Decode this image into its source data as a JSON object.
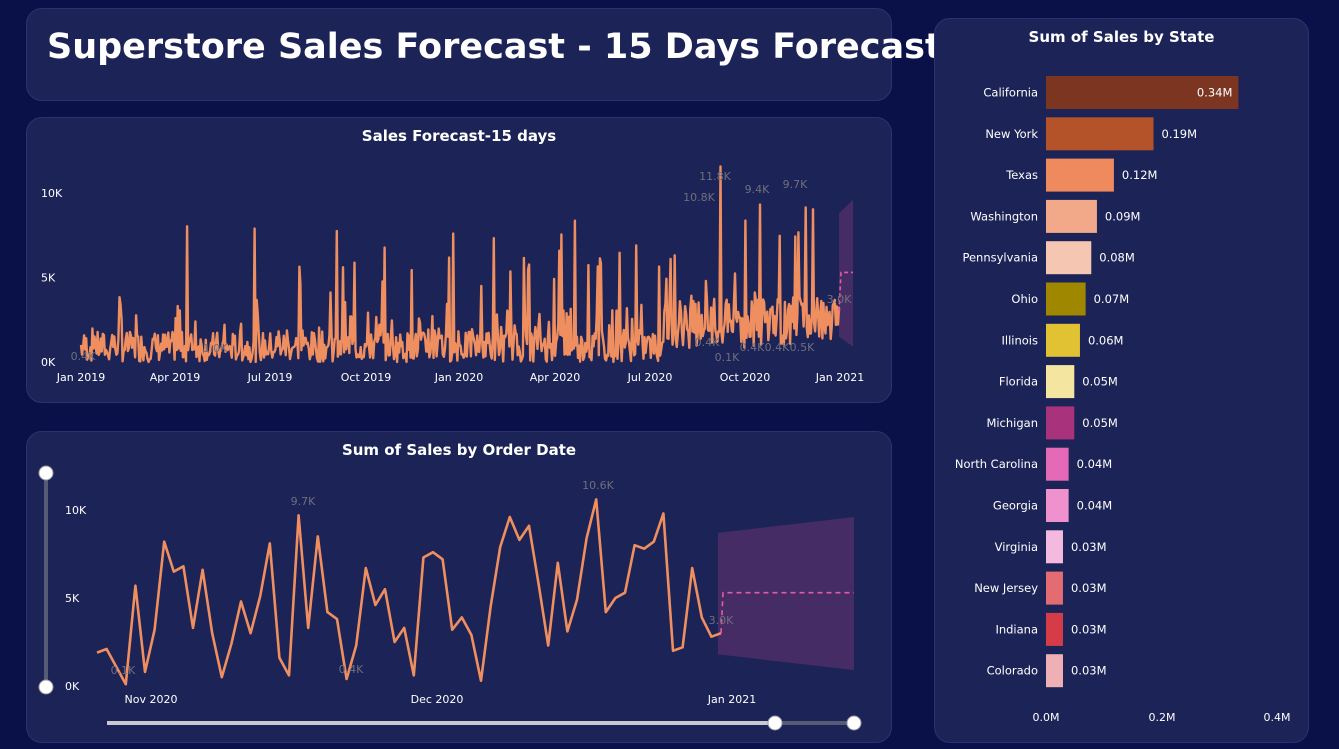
{
  "title": "Superstore Sales Forecast - 15 Days Forecast",
  "colors": {
    "background": "#0a1149",
    "card": "#1c2356",
    "line": "#ef8f5f",
    "forecast_band": "#4a2d66",
    "forecast_line": "#e75aa8"
  },
  "charts": {
    "forecast": {
      "title": "Sales Forecast-15 days",
      "y_ticks": [
        "0K",
        "5K",
        "10K"
      ],
      "x_ticks": [
        "Jan 2019",
        "Apr 2019",
        "Jul 2019",
        "Oct 2019",
        "Jan 2020",
        "Apr 2020",
        "Jul 2020",
        "Oct 2020",
        "Jan 2021"
      ],
      "annotations": [
        "0.4K",
        "10.8K",
        "11.8K",
        "9.4K",
        "9.7K",
        "0.4K",
        "0.1K",
        "3.0K"
      ]
    },
    "order_date": {
      "title": "Sum of Sales by Order Date",
      "y_ticks": [
        "0K",
        "5K",
        "10K"
      ],
      "x_ticks": [
        "Nov 2020",
        "Dec 2020",
        "Jan 2021"
      ],
      "annotations": [
        "0.1K",
        "9.7K",
        "0.4K",
        "10.6K",
        "3.0K"
      ]
    },
    "state": {
      "title": "Sum of Sales by State",
      "x_ticks": [
        "0.0M",
        "0.2M",
        "0.4M"
      ]
    }
  },
  "chart_data": [
    {
      "type": "line",
      "title": "Sales Forecast-15 days",
      "x_range": [
        "2019-01-01",
        "2021-01-15"
      ],
      "ylim": [
        0,
        10000
      ],
      "series": [
        {
          "x": [
            "2019-01",
            "2019-02",
            "2019-03",
            "2019-04",
            "2019-05",
            "2019-06",
            "2019-07",
            "2019-08",
            "2019-09",
            "2019-10",
            "2019-11",
            "2019-12",
            "2020-01",
            "2020-02",
            "2020-03",
            "2020-04",
            "2020-05",
            "2020-06",
            "2020-07",
            "2020-08",
            "2020-09",
            "2020-10",
            "2020-11",
            "2020-12",
            "2020-12-30"
          ],
          "peaks": [
            2000,
            8800,
            3000,
            9400,
            2500,
            8200,
            6000,
            5200,
            8000,
            6800,
            7500,
            8200,
            6400,
            7600,
            6600,
            9000,
            7300,
            7700,
            6600,
            10800,
            11800,
            9400,
            9700,
            10600,
            3000
          ]
        }
      ],
      "forecast": {
        "start": "2020-12-31",
        "end": "2021-01-15",
        "value": 5300,
        "lower": 900,
        "upper": 9600
      }
    },
    {
      "type": "line",
      "title": "Sum of Sales by Order Date",
      "x_range": [
        "2020-10-25",
        "2021-01-15"
      ],
      "ylim": [
        0,
        10000
      ],
      "values": [
        1900,
        2100,
        1100,
        100,
        5700,
        800,
        3200,
        8200,
        6500,
        6800,
        3300,
        6600,
        3000,
        500,
        2400,
        4800,
        3000,
        5100,
        8100,
        1600,
        600,
        9700,
        3300,
        8500,
        4200,
        3800,
        400,
        2300,
        6700,
        4600,
        5500,
        2500,
        3300,
        600,
        7300,
        7600,
        7200,
        3200,
        3900,
        2900,
        300,
        4500,
        7900,
        9600,
        8300,
        9100,
        5800,
        2300,
        7000,
        3100,
        4900,
        8400,
        10600,
        4200,
        5000,
        5300,
        8000,
        7800,
        8200,
        9800,
        2000,
        2200,
        6700,
        3900,
        2800,
        3000
      ],
      "forecast": {
        "start": "2020-12-31",
        "end": "2021-01-15",
        "value": 5300,
        "lower": 900,
        "upper": 9600
      }
    },
    {
      "type": "bar",
      "orientation": "horizontal",
      "title": "Sum of Sales by State",
      "categories": [
        "California",
        "New York",
        "Texas",
        "Washington",
        "Pennsylvania",
        "Ohio",
        "Illinois",
        "Florida",
        "Michigan",
        "North Carolina",
        "Georgia",
        "Virginia",
        "New Jersey",
        "Indiana",
        "Colorado"
      ],
      "values": [
        0.34,
        0.19,
        0.12,
        0.09,
        0.08,
        0.07,
        0.06,
        0.05,
        0.05,
        0.04,
        0.04,
        0.03,
        0.03,
        0.03,
        0.03
      ],
      "value_labels": [
        "0.34M",
        "0.19M",
        "0.12M",
        "0.09M",
        "0.08M",
        "0.07M",
        "0.06M",
        "0.05M",
        "0.05M",
        "0.04M",
        "0.04M",
        "0.03M",
        "0.03M",
        "0.03M",
        "0.03M"
      ],
      "colors": [
        "#7b3520",
        "#b4532a",
        "#ee8a5e",
        "#f2a98a",
        "#f5c6b1",
        "#a08700",
        "#e1c233",
        "#f4e6a0",
        "#a8337c",
        "#e46ab7",
        "#ee91cd",
        "#f4b9df",
        "#e36c72",
        "#d63c48",
        "#eeb0b4"
      ],
      "xlim": [
        0,
        0.4
      ],
      "unit": "M"
    }
  ]
}
